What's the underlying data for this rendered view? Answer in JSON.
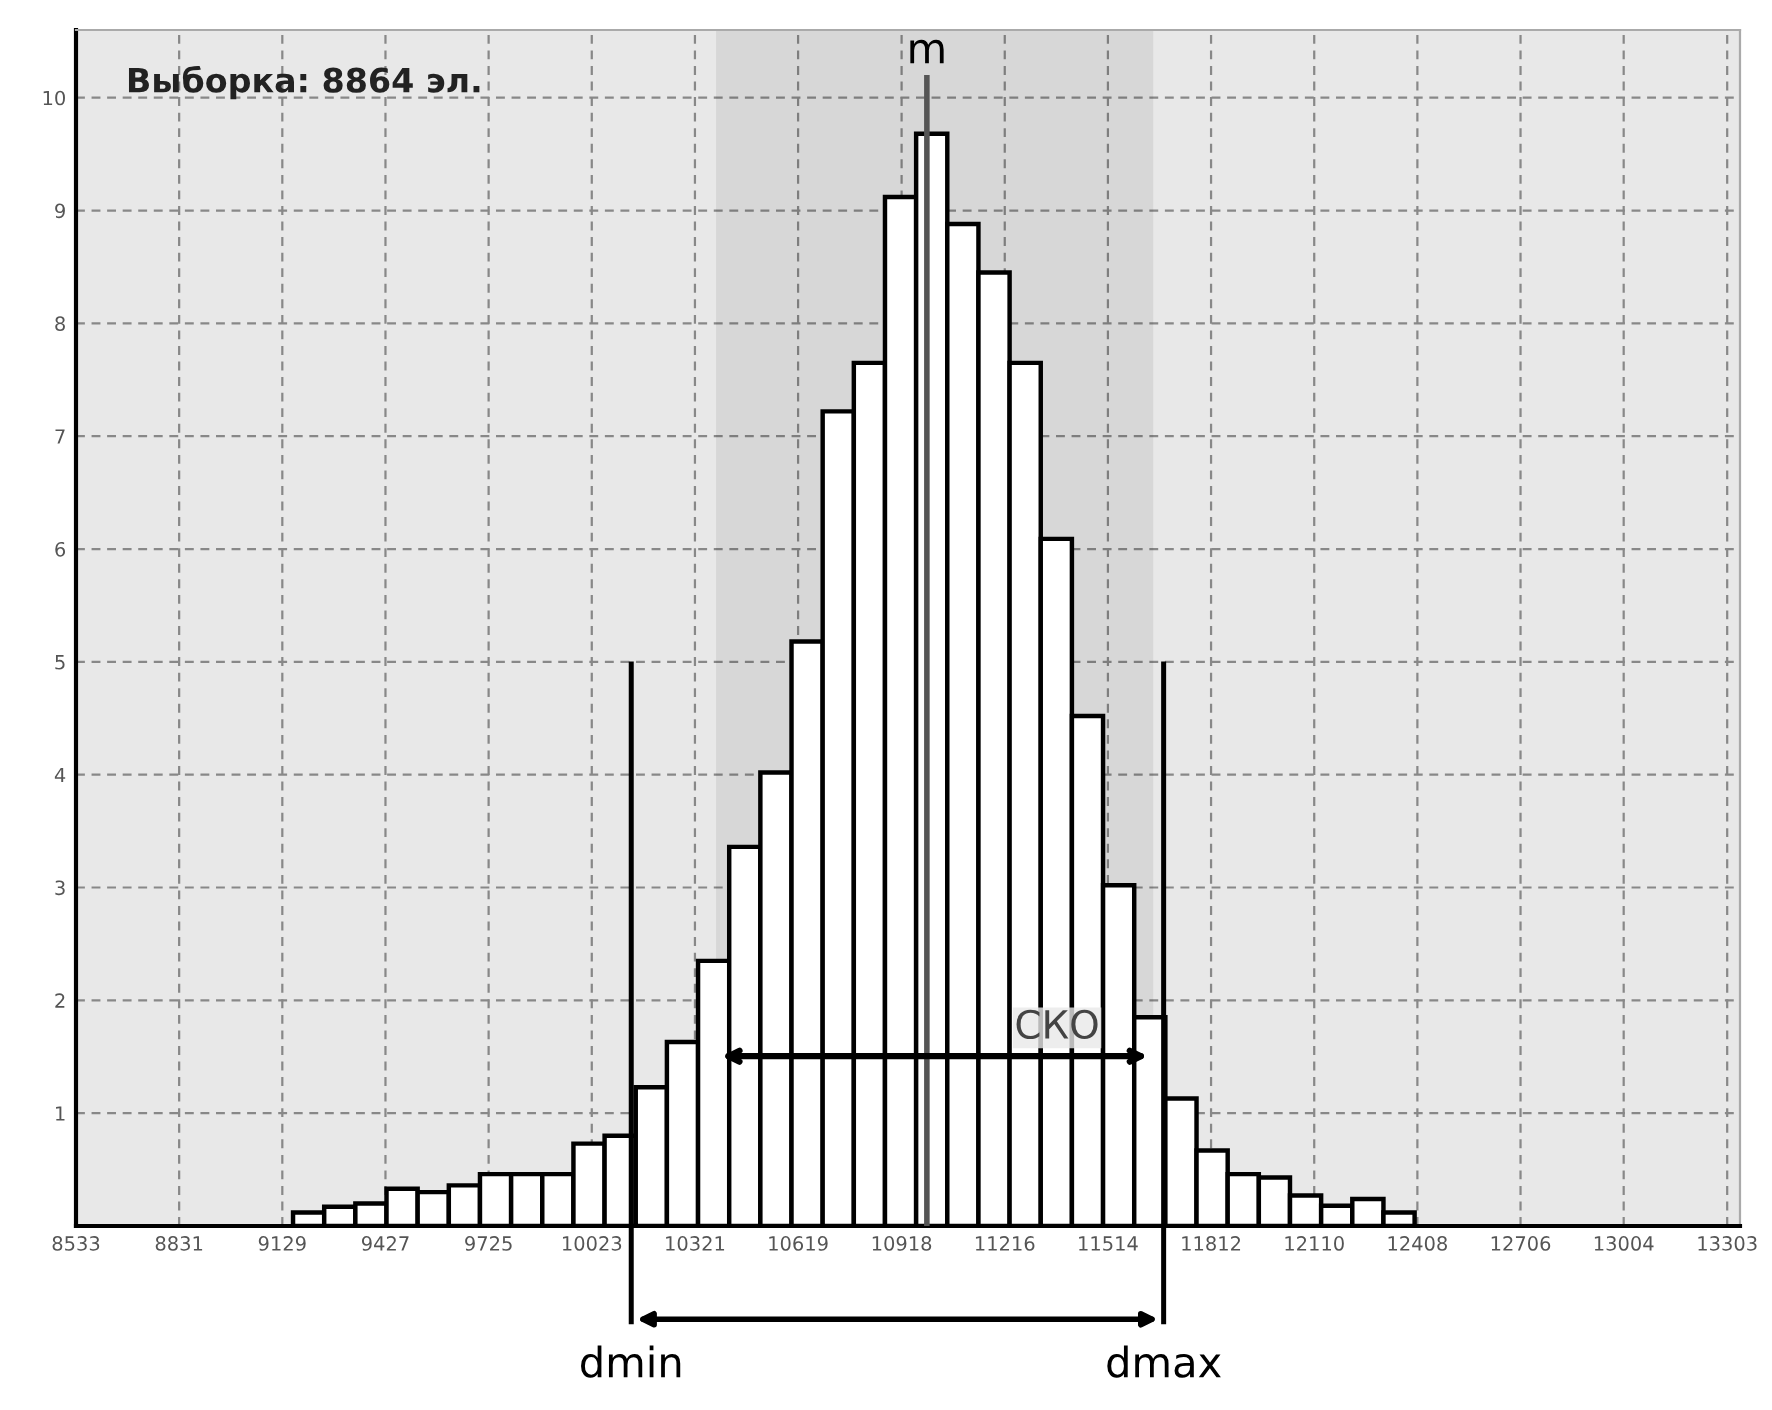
{
  "chart_data": {
    "type": "histogram",
    "title": "Выборка: 8864 эл.",
    "bins": [
      9160,
      9250,
      9340,
      9430,
      9520,
      9610,
      9700,
      9790,
      9880,
      9970,
      10060,
      10150,
      10240,
      10330,
      10420,
      10510,
      10600,
      10690,
      10780,
      10870,
      10960,
      11050,
      11140,
      11230,
      11320,
      11410,
      11500,
      11590,
      11680,
      11770,
      11860,
      11950,
      12040,
      12130,
      12220,
      12310,
      12400
    ],
    "values": [
      0.12,
      0.17,
      0.2,
      0.33,
      0.3,
      0.36,
      0.46,
      0.46,
      0.46,
      0.73,
      0.8,
      1.23,
      1.63,
      2.35,
      3.36,
      4.02,
      5.18,
      7.22,
      7.65,
      9.12,
      9.68,
      8.88,
      8.45,
      7.65,
      6.09,
      4.52,
      3.02,
      1.85,
      1.13,
      0.67,
      0.46,
      0.43,
      0.27,
      0.18,
      0.24,
      0.12
    ],
    "color": "#ffffff",
    "xlim": [
      8533,
      13340
    ],
    "ylim": [
      0,
      10.6
    ],
    "xticks": [
      8533,
      8831,
      9129,
      9427,
      9725,
      10023,
      10321,
      10619,
      10918,
      11216,
      11514,
      11812,
      12110,
      12408,
      12706,
      13004,
      13303
    ],
    "yticks": [
      1,
      2,
      3,
      4,
      5,
      6,
      7,
      8,
      9,
      10
    ],
    "grid": true,
    "ref_lines": [
      {
        "axis": "x",
        "value": 10991,
        "label": "m",
        "color": "#555555"
      },
      {
        "axis": "x",
        "value": 10137,
        "label": "dmin",
        "color": "#000000"
      },
      {
        "axis": "x",
        "value": 11675,
        "label": "dmax",
        "color": "#000000"
      }
    ],
    "bands": [
      {
        "axis": "x",
        "from": 10382,
        "to": 11645,
        "label": "СКО",
        "color": "#000000"
      }
    ]
  }
}
